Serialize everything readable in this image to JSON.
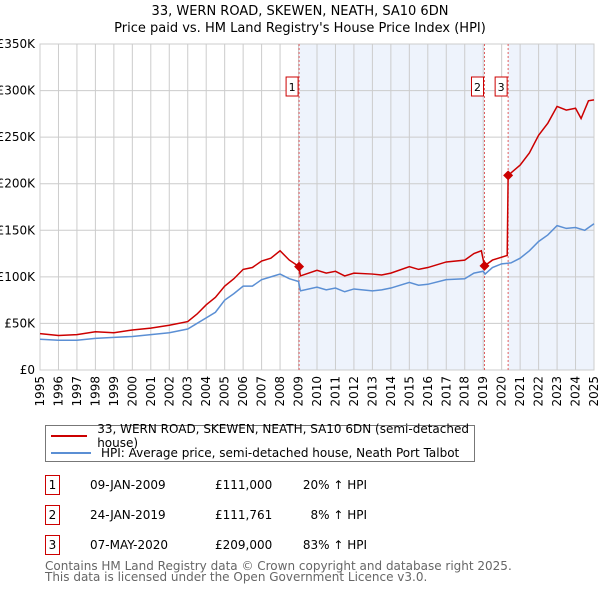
{
  "chart_data": {
    "type": "line",
    "title": "33, WERN ROAD, SKEWEN, NEATH, SA10 6DN",
    "subtitle": "Price paid vs. HM Land Registry's House Price Index (HPI)",
    "xlim": [
      1995,
      2025
    ],
    "ylim": [
      0,
      350000
    ],
    "y_ticks": [
      {
        "v": 0,
        "l": "£0"
      },
      {
        "v": 50000,
        "l": "£50K"
      },
      {
        "v": 100000,
        "l": "£100K"
      },
      {
        "v": 150000,
        "l": "£150K"
      },
      {
        "v": 200000,
        "l": "£200K"
      },
      {
        "v": 250000,
        "l": "£250K"
      },
      {
        "v": 300000,
        "l": "£300K"
      },
      {
        "v": 350000,
        "l": "£350K"
      }
    ],
    "x_ticks": [
      "1995",
      "1996",
      "1997",
      "1998",
      "1999",
      "2000",
      "2001",
      "2002",
      "2003",
      "2004",
      "2005",
      "2006",
      "2007",
      "2008",
      "2009",
      "2010",
      "2011",
      "2012",
      "2013",
      "2014",
      "2015",
      "2016",
      "2017",
      "2018",
      "2019",
      "2020",
      "2021",
      "2022",
      "2023",
      "2024",
      "2025"
    ],
    "grid": true,
    "series": [
      {
        "name": "33, WERN ROAD, SKEWEN, NEATH, SA10 6DN (semi-detached house)",
        "color": "#cc0000",
        "x": [
          1995,
          1996,
          1997,
          1998,
          1999,
          2000,
          2001,
          2002,
          2003,
          2003.5,
          2004,
          2004.5,
          2005,
          2005.5,
          2006,
          2006.5,
          2007,
          2007.5,
          2008,
          2008.5,
          2009.03,
          2009.1,
          2010,
          2010.5,
          2011,
          2011.5,
          2012,
          2013,
          2013.5,
          2014,
          2015,
          2015.5,
          2016,
          2017,
          2018,
          2018.5,
          2018.9,
          2019.07,
          2019.5,
          2020.3,
          2020.35,
          2021,
          2021.5,
          2022,
          2022.5,
          2023,
          2023.5,
          2024,
          2024.3,
          2024.7,
          2025
        ],
        "y": [
          39000,
          37000,
          38000,
          41000,
          40000,
          43000,
          45000,
          48000,
          52000,
          60000,
          70000,
          78000,
          90000,
          98000,
          108000,
          110000,
          117000,
          120000,
          128000,
          118000,
          111000,
          101000,
          107000,
          104000,
          106000,
          101000,
          104000,
          103000,
          102000,
          104000,
          111000,
          108000,
          110000,
          116000,
          118000,
          125000,
          128000,
          111761,
          118000,
          123000,
          209000,
          220000,
          233000,
          252000,
          265000,
          283000,
          279000,
          281000,
          270000,
          289000,
          290000
        ]
      },
      {
        "name": "HPI: Average price, semi-detached house, Neath Port Talbot",
        "color": "#5b8fd4",
        "x": [
          1995,
          1996,
          1997,
          1998,
          1999,
          2000,
          2001,
          2002,
          2003,
          2003.5,
          2004,
          2004.5,
          2005,
          2005.5,
          2006,
          2006.5,
          2007,
          2007.5,
          2008,
          2008.5,
          2009,
          2009.1,
          2010,
          2010.5,
          2011,
          2011.5,
          2012,
          2013,
          2013.5,
          2014,
          2015,
          2015.5,
          2016,
          2017,
          2018,
          2018.5,
          2019,
          2019.1,
          2019.5,
          2020,
          2020.5,
          2021,
          2021.5,
          2022,
          2022.5,
          2023,
          2023.5,
          2024,
          2024.5,
          2025
        ],
        "y": [
          33000,
          32000,
          32000,
          34000,
          35000,
          36000,
          38000,
          40000,
          44000,
          50000,
          56000,
          62000,
          75000,
          82000,
          90000,
          90000,
          97000,
          100000,
          103000,
          98000,
          95000,
          85000,
          89000,
          86000,
          88000,
          84000,
          87000,
          85000,
          86000,
          88000,
          94000,
          91000,
          92000,
          97000,
          98000,
          104000,
          106000,
          103000,
          110000,
          114000,
          115000,
          120000,
          128000,
          138000,
          145000,
          155000,
          152000,
          153000,
          150000,
          157000
        ]
      }
    ],
    "sales": [
      {
        "n": "1",
        "x": 2009.03,
        "y": 111000,
        "date": "09-JAN-2009",
        "price": "£111,000",
        "hpi": "20% ↑ HPI"
      },
      {
        "n": "2",
        "x": 2019.07,
        "y": 111761,
        "date": "24-JAN-2019",
        "price": "£111,761",
        "hpi": "8% ↑ HPI"
      },
      {
        "n": "3",
        "x": 2020.35,
        "y": 209000,
        "date": "07-MAY-2020",
        "price": "£209,000",
        "hpi": "83% ↑ HPI"
      }
    ]
  },
  "footer": {
    "line1": "Contains HM Land Registry data © Crown copyright and database right 2025.",
    "line2": "This data is licensed under the Open Government Licence v3.0."
  }
}
